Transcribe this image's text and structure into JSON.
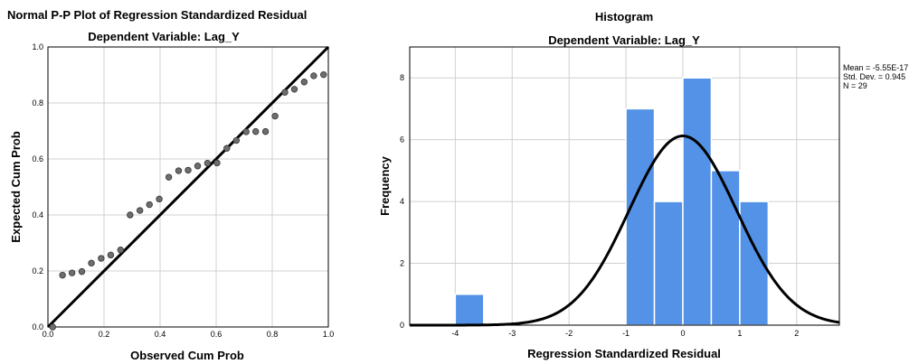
{
  "chart_data": [
    {
      "type": "scatter",
      "title": "Normal P-P Plot of Regression Standardized Residual",
      "subtitle": "Dependent Variable: Lag_Y",
      "xlabel": "Observed Cum Prob",
      "ylabel": "Expected Cum Prob",
      "xlim": [
        0,
        1
      ],
      "ylim": [
        0,
        1
      ],
      "xticks": [
        "0.0",
        "0.2",
        "0.4",
        "0.6",
        "0.8",
        "1.0"
      ],
      "yticks": [
        "0.0",
        "0.2",
        "0.4",
        "0.6",
        "0.8",
        "1.0"
      ],
      "grid": true,
      "reference_line": [
        [
          0,
          0
        ],
        [
          1,
          1
        ]
      ],
      "points": [
        [
          0.017,
          0.0
        ],
        [
          0.052,
          0.185
        ],
        [
          0.086,
          0.193
        ],
        [
          0.121,
          0.198
        ],
        [
          0.155,
          0.228
        ],
        [
          0.19,
          0.245
        ],
        [
          0.224,
          0.257
        ],
        [
          0.259,
          0.275
        ],
        [
          0.293,
          0.4
        ],
        [
          0.328,
          0.416
        ],
        [
          0.362,
          0.437
        ],
        [
          0.397,
          0.457
        ],
        [
          0.431,
          0.535
        ],
        [
          0.466,
          0.558
        ],
        [
          0.5,
          0.56
        ],
        [
          0.534,
          0.575
        ],
        [
          0.569,
          0.585
        ],
        [
          0.603,
          0.586
        ],
        [
          0.638,
          0.638
        ],
        [
          0.672,
          0.666
        ],
        [
          0.707,
          0.697
        ],
        [
          0.741,
          0.698
        ],
        [
          0.776,
          0.698
        ],
        [
          0.81,
          0.753
        ],
        [
          0.845,
          0.838
        ],
        [
          0.879,
          0.849
        ],
        [
          0.914,
          0.875
        ],
        [
          0.948,
          0.897
        ],
        [
          0.983,
          0.901
        ]
      ],
      "colors": {
        "point": "#6e6e6e",
        "line": "#000000",
        "grid": "#d0d0d0"
      }
    },
    {
      "type": "bar",
      "title": "Histogram",
      "subtitle": "Dependent Variable: Lag_Y",
      "xlabel": "Regression Standardized Residual",
      "ylabel": "Frequency",
      "xlim": [
        -4.8,
        2.75
      ],
      "ylim": [
        0,
        9
      ],
      "xticks": [
        "-4",
        "-3",
        "-2",
        "-1",
        "0",
        "1",
        "2"
      ],
      "yticks": [
        "0",
        "2",
        "4",
        "6",
        "8"
      ],
      "grid": true,
      "bins": [
        {
          "from": -4.0,
          "to": -3.5,
          "value": 1
        },
        {
          "from": -1.0,
          "to": -0.5,
          "value": 7
        },
        {
          "from": -0.5,
          "to": 0.0,
          "value": 4
        },
        {
          "from": 0.0,
          "to": 0.5,
          "value": 8
        },
        {
          "from": 0.5,
          "to": 1.0,
          "value": 5
        },
        {
          "from": 1.0,
          "to": 1.5,
          "value": 4
        }
      ],
      "normal_curve": {
        "mean": 0,
        "sd": 0.945,
        "n": 29,
        "bin_width": 0.5
      },
      "stats": [
        "Mean = -5.55E-17",
        "Std. Dev. = 0.945",
        "N = 29"
      ],
      "colors": {
        "bar": "#5392e6",
        "bar_edge": "#ffffff",
        "curve": "#000000",
        "grid": "#d0d0d0"
      }
    }
  ]
}
